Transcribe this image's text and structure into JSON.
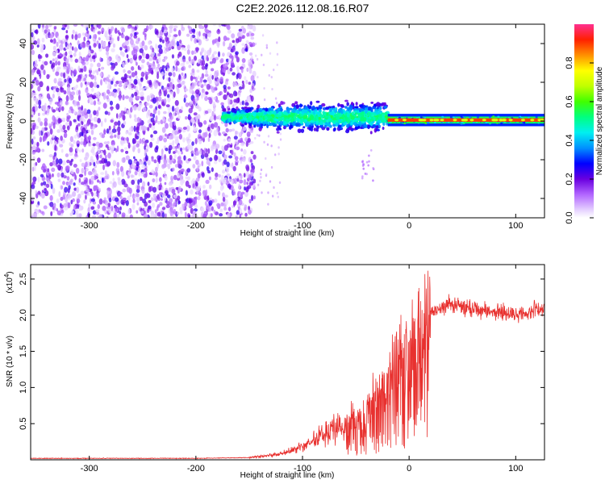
{
  "title": "C2E2.2026.112.08.16.R07",
  "chart_data": [
    {
      "type": "heatmap",
      "xlabel": "Height of straight line (km)",
      "ylabel": "Frequency (Hz)",
      "xlim": [
        -355,
        127
      ],
      "ylim": [
        -50,
        50
      ],
      "x_ticks": [
        -300,
        -200,
        -100,
        0,
        100
      ],
      "x_tick_labels": [
        "-300",
        "-200",
        "-100",
        "0",
        "100"
      ],
      "y_ticks": [
        -40,
        -20,
        0,
        20,
        40
      ],
      "y_tick_labels": [
        "-40",
        "-20",
        "0",
        "20",
        "40"
      ],
      "regions": [
        {
          "name": "noise",
          "x_range": [
            -355,
            -145
          ],
          "freq_range": [
            -50,
            50
          ],
          "amplitude": 0.05
        },
        {
          "name": "transition",
          "x_range": [
            -175,
            -20
          ],
          "freq_center": 2,
          "freq_spread": 10,
          "amplitude": 0.35
        },
        {
          "name": "signal",
          "x_range": [
            -20,
            127
          ],
          "freq_center": 0.5,
          "freq_spread": 2,
          "amplitude": 0.9
        }
      ],
      "colorbar": {
        "label": "Normalized spectral amplitude",
        "range": [
          0,
          1
        ],
        "ticks": [
          0.0,
          0.2,
          0.4,
          0.6,
          0.8
        ],
        "tick_labels": [
          "0.0",
          "0.2",
          "0.4",
          "0.6",
          "0.8"
        ]
      }
    },
    {
      "type": "line",
      "xlabel": "Height of straight line (km)",
      "ylabel": "SNR (10 * v/v)",
      "scale_label": "(x10",
      "scale_exp": "4",
      "scale_close": ")",
      "xlim": [
        -355,
        127
      ],
      "ylim": [
        0,
        2.7
      ],
      "x_ticks": [
        -300,
        -200,
        -100,
        0,
        100
      ],
      "x_tick_labels": [
        "-300",
        "-200",
        "-100",
        "0",
        "100"
      ],
      "y_ticks": [
        0.5,
        1.0,
        1.5,
        2.0,
        2.5
      ],
      "y_tick_labels": [
        "0.5",
        "1.0",
        "1.5",
        "2.0",
        "2.5"
      ],
      "color": "#e8312f",
      "series": [
        {
          "name": "SNR",
          "x": [
            -355,
            -200,
            -150,
            -120,
            -100,
            -80,
            -60,
            -40,
            -20,
            -10,
            0,
            10,
            20,
            30,
            40,
            60,
            80,
            100,
            127
          ],
          "y": [
            0.02,
            0.02,
            0.03,
            0.08,
            0.18,
            0.35,
            0.5,
            0.65,
            1.0,
            1.4,
            1.35,
            1.7,
            2.05,
            2.12,
            2.15,
            2.1,
            2.05,
            2.0,
            2.1
          ]
        }
      ]
    }
  ]
}
